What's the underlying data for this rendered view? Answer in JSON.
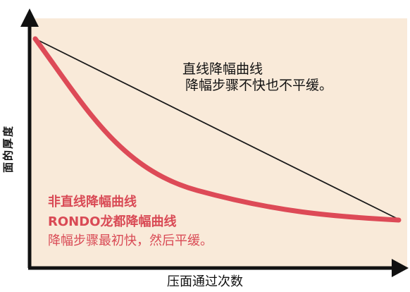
{
  "axes": {
    "y_label": "面的厚度",
    "x_label": "压面通过次数"
  },
  "annotations": {
    "straight_line_title": "直线降幅曲线",
    "straight_line_desc": "降幅步骤不快也不平缓。",
    "curve_title": "非直线降幅曲线",
    "curve_subtitle": "RONDO龙都降幅曲线",
    "curve_desc": "降幅步骤最初快，然后平缓。"
  },
  "colors": {
    "background": "#f9ead9",
    "axis": "#111111",
    "straight_line": "#1a1a1a",
    "curve": "#dd4a57",
    "curve_text": "#d94a55"
  }
}
